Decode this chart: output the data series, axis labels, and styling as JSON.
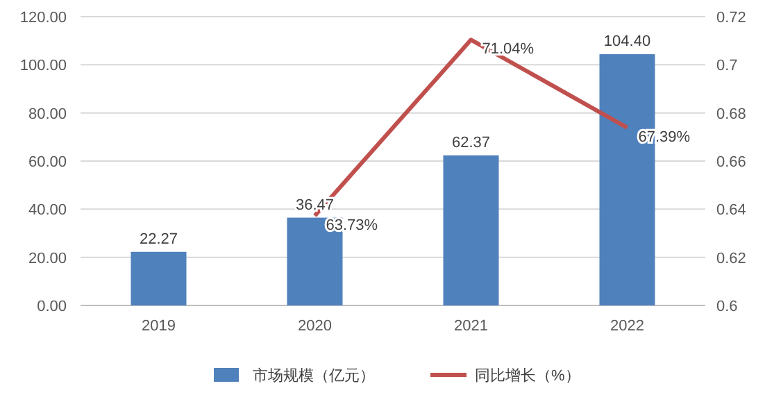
{
  "chart_data": {
    "type": "bar",
    "categories": [
      "2019",
      "2020",
      "2021",
      "2022"
    ],
    "series": [
      {
        "name": "市场规模（亿元）",
        "color": "#4f81bd",
        "values": [
          22.27,
          36.47,
          62.37,
          104.4
        ],
        "value_labels": [
          "22.27",
          "36.47",
          "62.37",
          "104.40"
        ]
      },
      {
        "name": "同比增长（%）",
        "type": "line",
        "axis": "y2",
        "color": "#c0504d",
        "values": [
          null,
          0.6373,
          0.7104,
          0.6739
        ],
        "value_labels": [
          null,
          "63.73%",
          "71.04%",
          "67.39%"
        ]
      }
    ],
    "ylim": [
      0,
      120
    ],
    "yticks": [
      {
        "value": 0,
        "label": "0.00"
      },
      {
        "value": 20,
        "label": "20.00"
      },
      {
        "value": 40,
        "label": "40.00"
      },
      {
        "value": 60,
        "label": "60.00"
      },
      {
        "value": 80,
        "label": "80.00"
      },
      {
        "value": 100,
        "label": "100.00"
      },
      {
        "value": 120,
        "label": "120.00"
      }
    ],
    "y2lim": [
      0.6,
      0.72
    ],
    "y2ticks": [
      0.6,
      0.62,
      0.64,
      0.66,
      0.68,
      0.7,
      0.72
    ],
    "grid": "y",
    "legend": "bottom"
  }
}
